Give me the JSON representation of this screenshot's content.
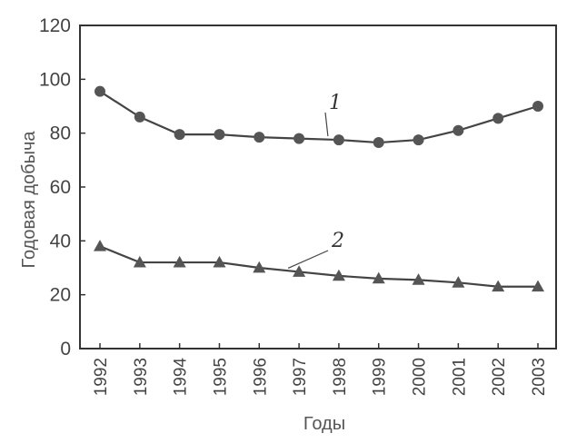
{
  "chart_data": {
    "type": "line",
    "xlabel": "Годы",
    "ylabel": "Годовая добыча",
    "ylim": [
      0,
      120
    ],
    "yticks": [
      0,
      20,
      40,
      60,
      80,
      100,
      120
    ],
    "categories": [
      "1992",
      "1993",
      "1994",
      "1995",
      "1996",
      "1997",
      "1998",
      "1999",
      "2000",
      "2001",
      "2002",
      "2003"
    ],
    "grid": false,
    "series": [
      {
        "name": "1",
        "marker": "circle",
        "values": [
          95.5,
          86,
          79.5,
          79.5,
          78.5,
          78,
          77.5,
          76.5,
          77.5,
          81,
          85.5,
          90
        ]
      },
      {
        "name": "2",
        "marker": "triangle",
        "values": [
          38,
          32,
          32,
          32,
          30,
          28.5,
          27,
          26,
          25.5,
          24.5,
          23,
          23
        ]
      }
    ],
    "colors": {
      "line": "#444444",
      "marker": "#555555",
      "axis": "#333333"
    }
  }
}
